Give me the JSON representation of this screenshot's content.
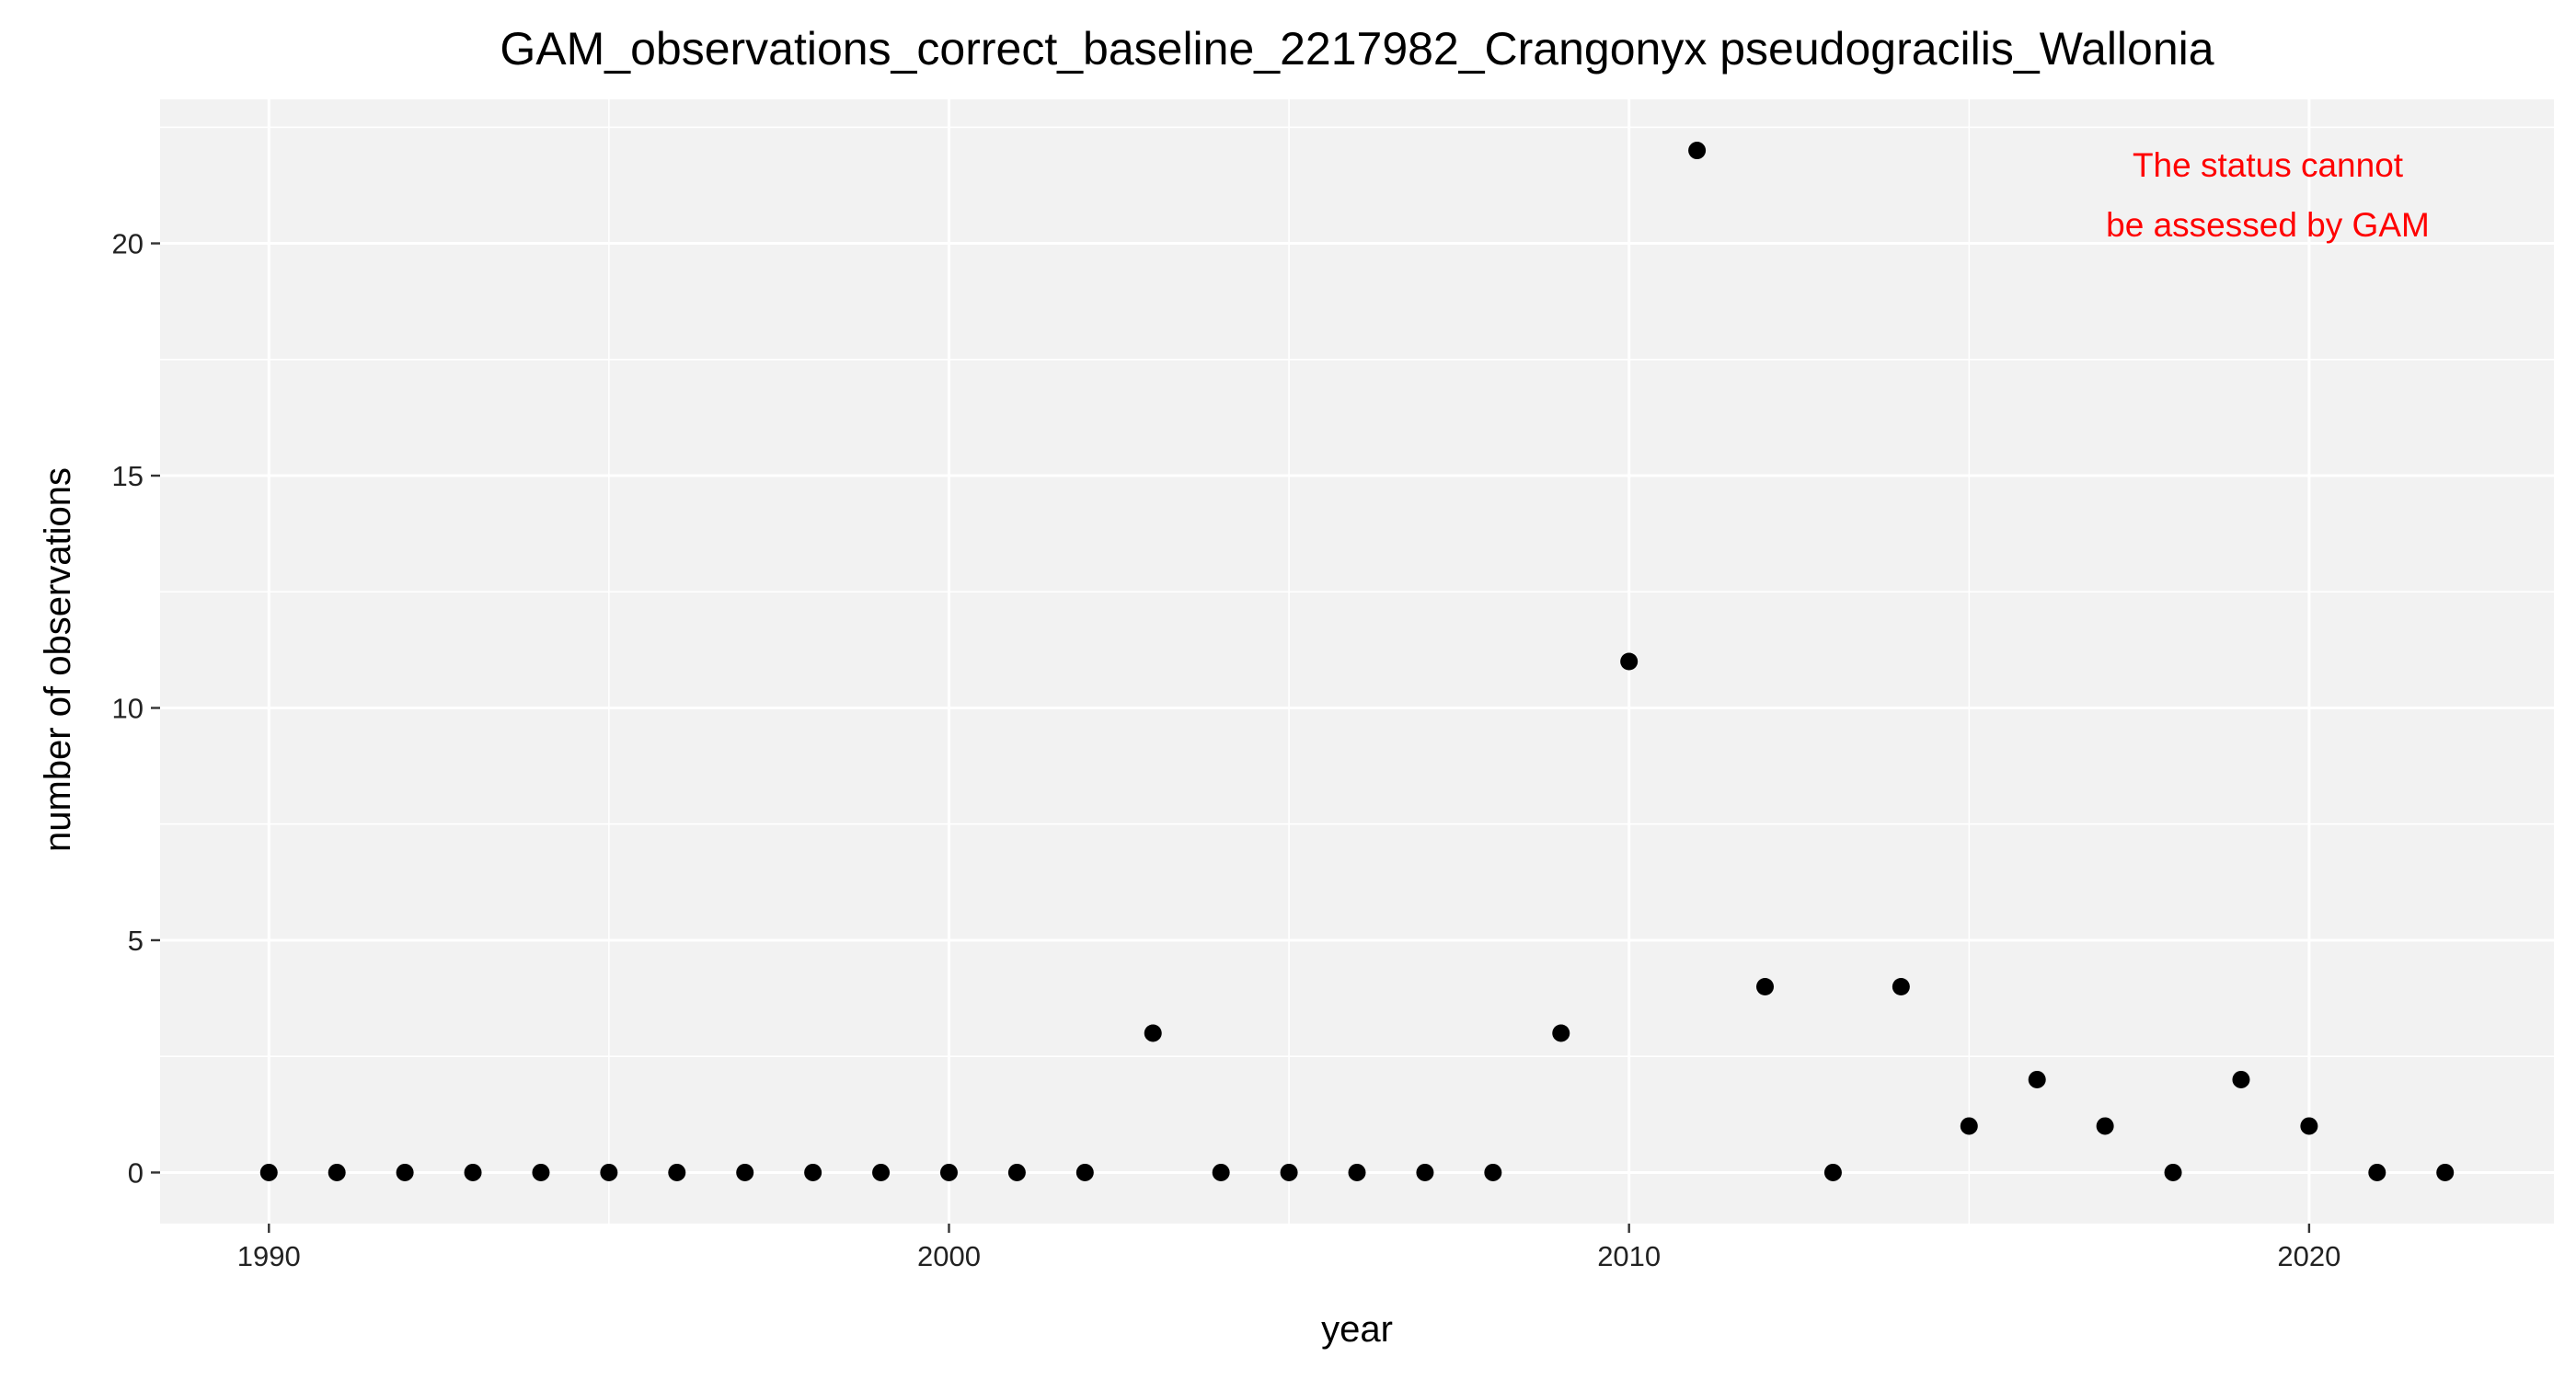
{
  "chart_data": {
    "type": "scatter",
    "title": "GAM_observations_correct_baseline_2217982_Crangonyx pseudogracilis_Wallonia",
    "xlabel": "year",
    "ylabel": "number of observations",
    "xlim": [
      1988.4,
      2023.6
    ],
    "ylim": [
      -1.1,
      23.1
    ],
    "x_ticks": [
      1990,
      2000,
      2010,
      2020
    ],
    "y_ticks": [
      0,
      5,
      10,
      15,
      20
    ],
    "x_tick_labels": [
      "1990",
      "2000",
      "2010",
      "2020"
    ],
    "y_tick_labels": [
      "0",
      "5",
      "10",
      "15",
      "20"
    ],
    "grid": true,
    "panel_background": "#f2f2f2",
    "grid_color": "#ffffff",
    "point_color": "#000000",
    "annotation": {
      "lines": [
        "The status cannot",
        "be assessed by GAM"
      ],
      "color": "#ff0000"
    },
    "points": [
      {
        "x": 1990,
        "y": 0
      },
      {
        "x": 1991,
        "y": 0
      },
      {
        "x": 1992,
        "y": 0
      },
      {
        "x": 1993,
        "y": 0
      },
      {
        "x": 1994,
        "y": 0
      },
      {
        "x": 1995,
        "y": 0
      },
      {
        "x": 1996,
        "y": 0
      },
      {
        "x": 1997,
        "y": 0
      },
      {
        "x": 1998,
        "y": 0
      },
      {
        "x": 1999,
        "y": 0
      },
      {
        "x": 2000,
        "y": 0
      },
      {
        "x": 2001,
        "y": 0
      },
      {
        "x": 2002,
        "y": 0
      },
      {
        "x": 2003,
        "y": 3
      },
      {
        "x": 2004,
        "y": 0
      },
      {
        "x": 2005,
        "y": 0
      },
      {
        "x": 2006,
        "y": 0
      },
      {
        "x": 2007,
        "y": 0
      },
      {
        "x": 2008,
        "y": 0
      },
      {
        "x": 2009,
        "y": 3
      },
      {
        "x": 2010,
        "y": 11
      },
      {
        "x": 2011,
        "y": 22
      },
      {
        "x": 2012,
        "y": 4
      },
      {
        "x": 2013,
        "y": 0
      },
      {
        "x": 2014,
        "y": 4
      },
      {
        "x": 2015,
        "y": 1
      },
      {
        "x": 2016,
        "y": 2
      },
      {
        "x": 2017,
        "y": 1
      },
      {
        "x": 2018,
        "y": 0
      },
      {
        "x": 2019,
        "y": 2
      },
      {
        "x": 2020,
        "y": 1
      },
      {
        "x": 2021,
        "y": 0
      },
      {
        "x": 2022,
        "y": 0
      }
    ]
  }
}
